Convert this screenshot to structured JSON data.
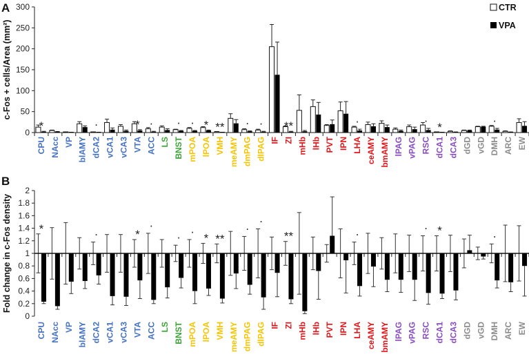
{
  "colors": {
    "blue": "#4472c4",
    "green": "#3aa535",
    "yellow": "#f5c400",
    "red": "#e0161b",
    "purple": "#8a4cc2",
    "gray": "#8c8c8c",
    "ctr": "#ffffff",
    "vpa": "#000000"
  },
  "chart_data": [
    {
      "type": "bar",
      "panel": "A",
      "ylabel": "c-Fos + cells/Area (mm²)",
      "ylim": [
        0,
        300
      ],
      "yticks": [
        0,
        50,
        100,
        150,
        200,
        250,
        300
      ],
      "legend": {
        "position": "top-right",
        "entries": [
          "CTR",
          "VPA"
        ]
      },
      "categories": [
        "CPU",
        "NAcc",
        "VP",
        "blAMY",
        "dCA2",
        "vCA1",
        "vCA3",
        "VTA",
        "ACC",
        "LS",
        "BNST",
        "mPOA",
        "lPOA",
        "VMH",
        "meAMY",
        "dmPAG",
        "dlPAG",
        "IF",
        "ZI",
        "mHb",
        "lHb",
        "PVT",
        "IPN",
        "LHA",
        "ceAMY",
        "bmAMY",
        "lPAG",
        "vPAG",
        "RSC",
        "dCA1",
        "dCA3",
        "dGD",
        "vGD",
        "DMH",
        "ARC",
        "EW"
      ],
      "category_groups": [
        "blue",
        "blue",
        "blue",
        "blue",
        "blue",
        "blue",
        "blue",
        "blue",
        "blue",
        "green",
        "green",
        "yellow",
        "yellow",
        "yellow",
        "yellow",
        "yellow",
        "yellow",
        "red",
        "red",
        "red",
        "red",
        "red",
        "red",
        "red",
        "red",
        "red",
        "purple",
        "purple",
        "purple",
        "purple",
        "purple",
        "gray",
        "gray",
        "gray",
        "gray",
        "gray"
      ],
      "series": [
        {
          "name": "CTR",
          "values": [
            13,
            5,
            1,
            21,
            0.5,
            24,
            15,
            21,
            9,
            13,
            7,
            10,
            12,
            2,
            34,
            7,
            6,
            205,
            14,
            53,
            62,
            17,
            52,
            13,
            19,
            22,
            8,
            14,
            18,
            0.3,
            3,
            5,
            14,
            15,
            3,
            24
          ],
          "errors": [
            5,
            1,
            0.5,
            5,
            0.3,
            8,
            4,
            5,
            3,
            3,
            1,
            2,
            2,
            0.5,
            11,
            2,
            2,
            53,
            2,
            37,
            16,
            2,
            21,
            2,
            6,
            6,
            3,
            4,
            6,
            0.2,
            1,
            1,
            1,
            2,
            1,
            9
          ]
        },
        {
          "name": "VPA",
          "values": [
            2,
            2,
            0.5,
            13,
            0.3,
            7,
            4,
            5,
            2,
            6,
            4,
            4,
            5,
            0.5,
            22,
            3,
            2,
            138,
            2,
            3,
            43,
            20,
            45,
            5,
            15,
            13,
            4,
            8,
            6,
            0.2,
            1,
            5,
            14,
            7,
            1,
            16
          ],
          "errors": [
            1,
            0.5,
            0.2,
            3,
            0.2,
            4,
            2,
            2,
            1,
            3,
            1,
            1,
            1,
            0.2,
            9,
            1,
            1,
            78,
            1,
            2,
            29,
            10,
            29,
            3,
            6,
            5,
            2,
            5,
            4,
            0.1,
            0.5,
            1,
            1,
            3,
            0.5,
            10
          ]
        }
      ],
      "significance": {
        "CPU": "*",
        "dCA2": "·",
        "VTA": "*",
        "ACC": "·",
        "BNST": "·",
        "mPOA": "·",
        "lPOA": "*",
        "VMH": "**",
        "dmPAG": "·",
        "dlPAG": "·",
        "ZI": "**",
        "LHA": "·",
        "RSC": "·",
        "dCA1": "*",
        "DMH": "·"
      }
    },
    {
      "type": "bar",
      "panel": "B",
      "ylabel": "Fold change in c-Fos density",
      "ylim": [
        0,
        2
      ],
      "yticks": [
        "0",
        "0.2",
        "0.4",
        "0.6",
        "0.8",
        "1",
        "1.2",
        "1.4",
        "1.6",
        "1.8",
        "2"
      ],
      "baseline": 1,
      "ctr_errors": [
        0.31,
        0.41,
        0.49,
        0.25,
        0.18,
        0.3,
        0.3,
        0.22,
        0.32,
        0.22,
        0.13,
        0.22,
        0.16,
        0.15,
        0.35,
        0.27,
        0.39,
        0.26,
        0.19,
        0.65,
        0.26,
        0.14,
        0.39,
        0.18,
        0.32,
        0.25,
        0.31,
        0.29,
        0.28,
        0.28,
        0.29,
        0.23,
        0.1,
        0.15,
        0.45,
        0.44
      ],
      "vpa_values": [
        0.23,
        0.16,
        0.55,
        0.56,
        0.65,
        0.32,
        0.31,
        0.57,
        0.26,
        0.46,
        0.61,
        0.4,
        0.44,
        0.28,
        0.68,
        0.5,
        0.3,
        0.69,
        0.27,
        0.08,
        0.72,
        1.28,
        0.89,
        0.48,
        0.79,
        0.58,
        0.58,
        0.58,
        0.37,
        0.36,
        0.41,
        1.05,
        0.95,
        0.57,
        0.54,
        0.8
      ],
      "vpa_errors": [
        0.03,
        0.05,
        0.19,
        0.12,
        0.14,
        0.14,
        0.14,
        0.29,
        0.06,
        0.17,
        0.16,
        0.2,
        0.11,
        0.07,
        0.24,
        0.15,
        0.19,
        0.38,
        0.07,
        0.04,
        0.45,
        0.62,
        0.52,
        0.16,
        0.32,
        0.19,
        0.2,
        0.33,
        0.18,
        0.08,
        0.15,
        0.24,
        0.04,
        0.12,
        0.15,
        0.48
      ]
    }
  ]
}
